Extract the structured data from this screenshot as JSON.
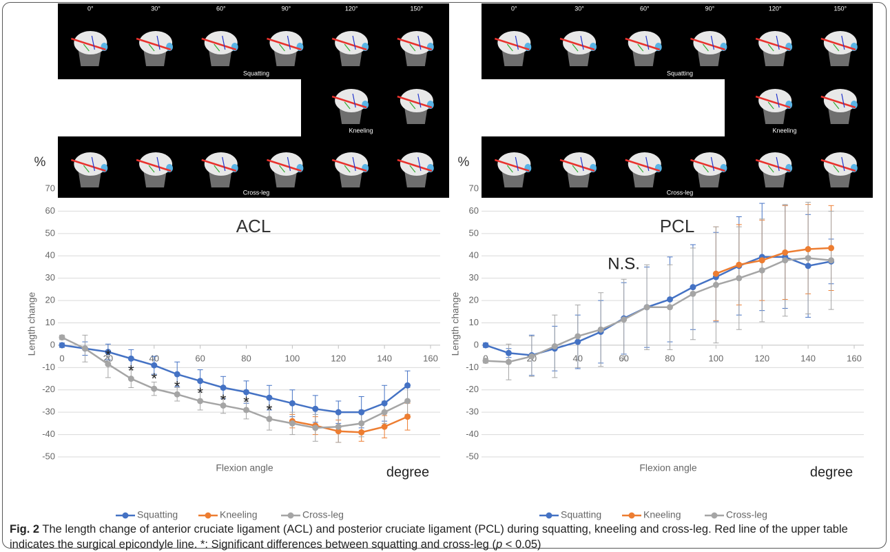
{
  "chart_data": [
    {
      "type": "line",
      "title": "ACL",
      "y_unit": "%",
      "y_label": "Length change",
      "x_label": "Flexion angle",
      "x_unit": "degree",
      "image_panel": {
        "angles": [
          "0°",
          "30°",
          "60°",
          "90°",
          "120°",
          "150°"
        ],
        "rows": [
          "Squatting",
          "Kneeling",
          "Cross-leg"
        ]
      },
      "x": [
        0,
        10,
        20,
        30,
        40,
        50,
        60,
        70,
        80,
        90,
        100,
        110,
        120,
        130,
        140,
        150
      ],
      "xlim": [
        0,
        160
      ],
      "xticks": [
        0,
        20,
        40,
        60,
        80,
        100,
        120,
        140,
        160
      ],
      "ylim": [
        -50,
        70
      ],
      "yticks": [
        -50,
        -40,
        -30,
        -20,
        -10,
        0,
        10,
        20,
        30,
        40,
        50,
        60,
        70
      ],
      "grid": true,
      "series": [
        {
          "name": "Squatting",
          "color": "#4472c4",
          "values": [
            0,
            -1.5,
            -3,
            -6,
            -9,
            -13,
            -16,
            -19,
            -21,
            -23.5,
            -26,
            -28.5,
            -30,
            -30,
            -26,
            -18
          ],
          "errors": [
            1,
            3,
            3.5,
            4,
            4,
            5.5,
            5,
            5,
            5,
            5.5,
            6,
            6,
            5,
            7,
            8,
            6.5
          ]
        },
        {
          "name": "Kneeling",
          "color": "#ed7d31",
          "values": [
            null,
            null,
            null,
            null,
            null,
            null,
            null,
            null,
            null,
            null,
            -34,
            -36,
            -38.5,
            -39,
            -36.5,
            -32
          ],
          "errors": [
            null,
            null,
            null,
            null,
            null,
            null,
            null,
            null,
            null,
            null,
            3,
            4,
            5,
            4,
            5,
            6
          ]
        },
        {
          "name": "Cross-leg",
          "color": "#a5a5a5",
          "values": [
            3.5,
            -1.5,
            -8.5,
            -15,
            -19.5,
            -22,
            -25,
            -27,
            -29,
            -33,
            -35,
            -37,
            -36.5,
            -35,
            -30,
            -25
          ],
          "errors": [
            1,
            6,
            6,
            4,
            3,
            3,
            4,
            3.5,
            4,
            5,
            5,
            6,
            7,
            6,
            5,
            6
          ]
        }
      ],
      "annotations": [
        {
          "text": "*",
          "x": 20,
          "y": -5
        },
        {
          "text": "*",
          "x": 30,
          "y": -12
        },
        {
          "text": "*",
          "x": 40,
          "y": -15.5
        },
        {
          "text": "*",
          "x": 50,
          "y": -19
        },
        {
          "text": "*",
          "x": 60,
          "y": -22
        },
        {
          "text": "*",
          "x": 70,
          "y": -25
        },
        {
          "text": "*",
          "x": 80,
          "y": -26
        },
        {
          "text": "*",
          "x": 90,
          "y": -29.5
        }
      ]
    },
    {
      "type": "line",
      "title": "PCL",
      "y_unit": "%",
      "y_label": "Length change",
      "x_label": "Flexion angle",
      "x_unit": "degree",
      "image_panel": {
        "angles": [
          "0°",
          "30°",
          "60°",
          "90°",
          "120°",
          "150°"
        ],
        "rows": [
          "Squatting",
          "Kneeling",
          "Cross-leg"
        ]
      },
      "x": [
        0,
        10,
        20,
        30,
        40,
        50,
        60,
        70,
        80,
        90,
        100,
        110,
        120,
        130,
        140,
        150
      ],
      "xlim": [
        0,
        160
      ],
      "xticks": [
        0,
        20,
        40,
        60,
        80,
        100,
        120,
        140,
        160
      ],
      "ylim": [
        -50,
        70
      ],
      "yticks": [
        -50,
        -40,
        -30,
        -20,
        -10,
        0,
        10,
        20,
        30,
        40,
        50,
        60,
        70
      ],
      "grid": true,
      "series": [
        {
          "name": "Squatting",
          "color": "#4472c4",
          "values": [
            0,
            -3.5,
            -4.5,
            -1.5,
            1.5,
            6,
            12,
            17,
            20.5,
            26,
            30.5,
            35.5,
            39.5,
            39.5,
            35.5,
            37.5
          ],
          "errors": [
            1,
            2,
            9,
            10,
            12,
            14,
            16,
            18,
            19,
            19,
            20,
            22,
            24,
            23,
            23,
            10
          ]
        },
        {
          "name": "Kneeling",
          "color": "#ed7d31",
          "values": [
            null,
            null,
            null,
            null,
            null,
            null,
            null,
            null,
            null,
            null,
            32,
            36,
            38,
            41.5,
            43,
            43.5
          ],
          "errors": [
            null,
            null,
            null,
            null,
            null,
            null,
            null,
            null,
            null,
            null,
            21,
            18,
            18,
            21,
            20,
            19
          ]
        },
        {
          "name": "Cross-leg",
          "color": "#a5a5a5",
          "values": [
            -7,
            -7.5,
            -5,
            -0.5,
            4,
            7,
            11.5,
            17,
            17,
            23,
            27,
            30,
            33.5,
            38,
            39,
            38
          ],
          "errors": [
            1,
            8,
            9,
            14,
            14,
            16.5,
            18,
            19,
            19,
            20.5,
            26,
            23,
            23,
            25,
            25,
            22
          ]
        }
      ],
      "annotations": [
        {
          "text": "N.S.",
          "x": 60,
          "y": 36
        }
      ]
    }
  ],
  "caption": {
    "label": "Fig. 2",
    "text": "The length change of anterior cruciate ligament (ACL) and posterior cruciate ligament (PCL) during squatting, kneeling and cross-leg. Red line of the upper table indicates the surgical epicondyle line. *: Significant differences between squatting and cross-leg (",
    "italic": "p",
    "text_end": " < 0.05)"
  }
}
